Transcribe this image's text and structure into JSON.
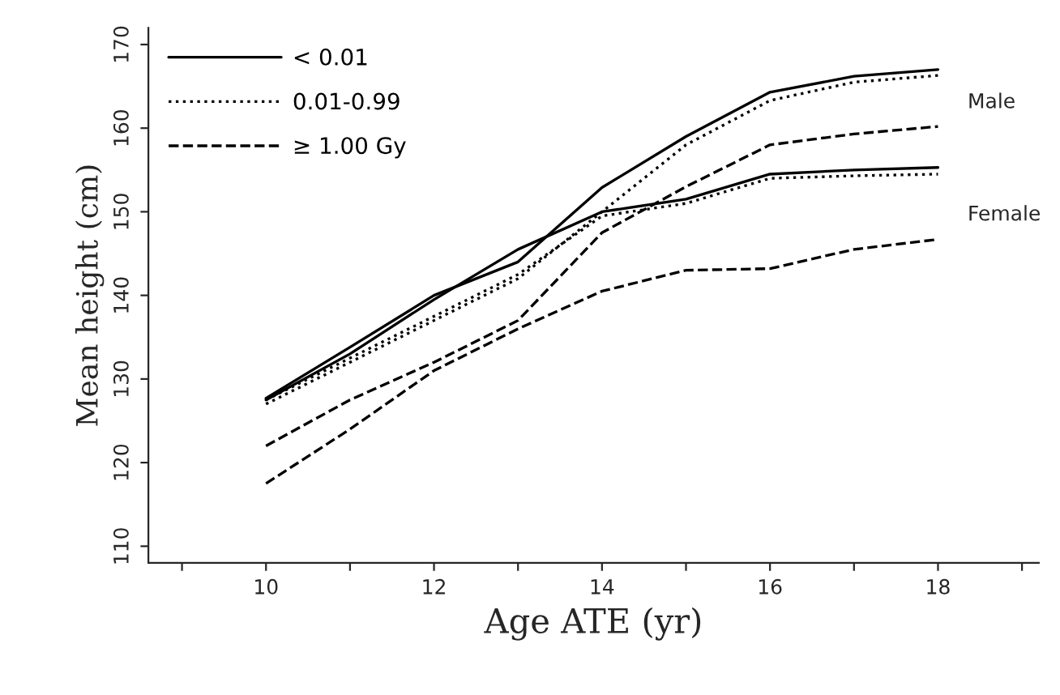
{
  "chart_data": {
    "type": "line",
    "xlabel": "Age ATE (yr)",
    "ylabel": "Mean height (cm)",
    "x": [
      10,
      11,
      12,
      13,
      14,
      15,
      16,
      17,
      18
    ],
    "xlim": [
      8.6,
      19.2
    ],
    "xticks": [
      {
        "value": 9,
        "label": null
      },
      10,
      {
        "value": 11,
        "label": null
      },
      12,
      {
        "value": 13,
        "label": null
      },
      14,
      {
        "value": 15,
        "label": null
      },
      16,
      {
        "value": 17,
        "label": null
      },
      18,
      {
        "value": 19,
        "label": null
      }
    ],
    "ylim": [
      108,
      172
    ],
    "yticks": [
      110,
      120,
      130,
      140,
      150,
      160,
      170
    ],
    "grid": false,
    "legend": "top left",
    "marker": "none",
    "series": [
      {
        "name": "< 0.01",
        "color": "#000000",
        "line_style": "solid",
        "values": [
          127.7,
          133.8,
          140,
          144,
          152.9,
          159,
          164.3,
          166.2,
          167
        ]
      },
      {
        "name": "0.01-0.99",
        "color": "#000000",
        "line_style": "dotted",
        "values": [
          127,
          132,
          137,
          142,
          150,
          158,
          163.3,
          165.5,
          166.3
        ]
      },
      {
        "name": "≥ 1.00 Gy",
        "color": "#000000",
        "line_style": "dashed",
        "values": [
          122,
          127.5,
          132,
          137,
          147.5,
          153,
          158,
          159.3,
          160.2
        ]
      },
      {
        "color": "#000000",
        "line_style": "solid",
        "values": [
          127.5,
          133,
          139.5,
          145.5,
          150,
          151.5,
          154.5,
          155,
          155.3
        ]
      },
      {
        "color": "#000000",
        "line_style": "dotted",
        "values": [
          127.5,
          132.5,
          137.5,
          142.5,
          149.5,
          151,
          154,
          154.3,
          154.5
        ]
      },
      {
        "color": "#000000",
        "line_style": "dashed",
        "values": [
          117.5,
          124,
          131,
          136,
          140.5,
          143,
          143.2,
          145.5,
          146.7
        ]
      }
    ],
    "annotations": [
      "Male",
      "Female"
    ]
  }
}
